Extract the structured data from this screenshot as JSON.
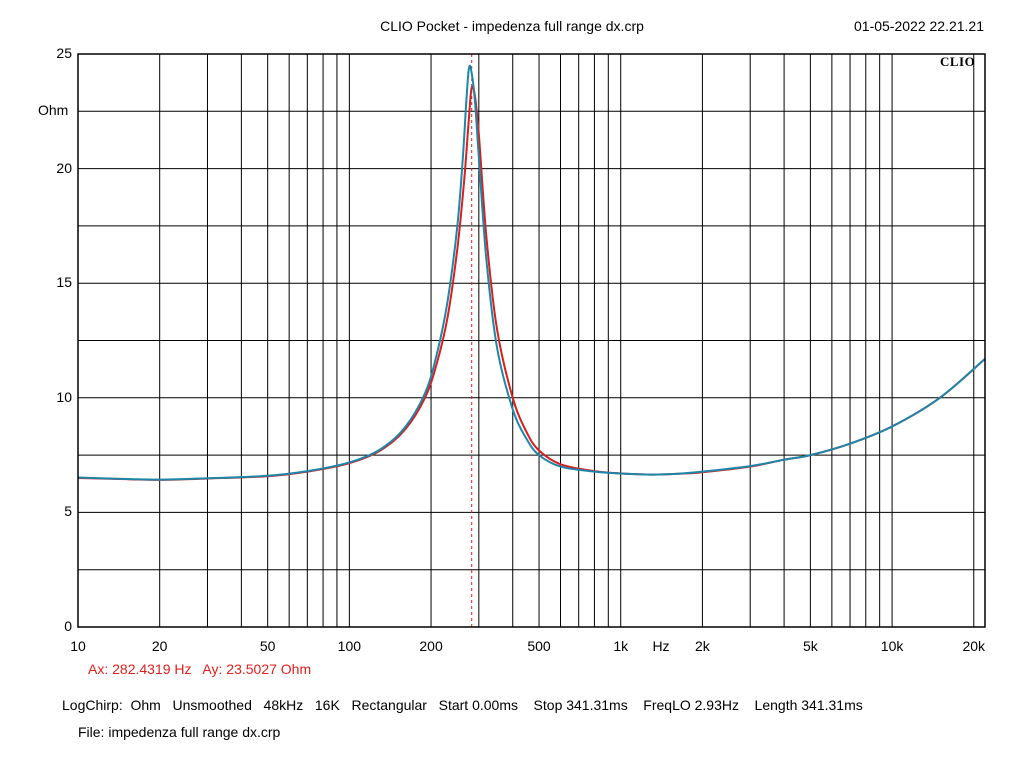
{
  "header": {
    "title": "CLIO Pocket - impedenza full range dx.crp",
    "datetime": "01-05-2022 22.21.21",
    "brand": "CLIO"
  },
  "cursor_readout": {
    "ax": "Ax: 282.4319 Hz",
    "ay": "Ay: 23.5027 Ohm"
  },
  "settings_line": "LogChirp:  Ohm   Unsmoothed   48kHz   16K   Rectangular   Start 0.00ms    Stop 341.31ms    FreqLO 2.93Hz    Length 341.31ms",
  "file_line": "File: impedenza full range dx.crp",
  "colors": {
    "red_trace": "#d81e1e",
    "blue_trace": "#1e86a8",
    "grid": "#000000",
    "cursor": "#d81e1e"
  },
  "chart_data": {
    "type": "line",
    "title": "CLIO Pocket - impedenza full range dx.crp",
    "xlabel": "Hz",
    "ylabel": "Ohm",
    "x_scale": "log",
    "xlim": [
      10,
      22000
    ],
    "ylim": [
      0,
      25
    ],
    "grid": true,
    "x_tick_labels": [
      {
        "value": 10,
        "label": "10"
      },
      {
        "value": 20,
        "label": "20"
      },
      {
        "value": 50,
        "label": "50"
      },
      {
        "value": 100,
        "label": "100"
      },
      {
        "value": 200,
        "label": "200"
      },
      {
        "value": 500,
        "label": "500"
      },
      {
        "value": 1000,
        "label": "1k"
      },
      {
        "value": 2000,
        "label": "2k"
      },
      {
        "value": 5000,
        "label": "5k"
      },
      {
        "value": 10000,
        "label": "10k"
      },
      {
        "value": 20000,
        "label": "20k"
      }
    ],
    "y_tick_labels": [
      {
        "value": 0,
        "label": "0"
      },
      {
        "value": 5,
        "label": "5"
      },
      {
        "value": 10,
        "label": "10"
      },
      {
        "value": 15,
        "label": "15"
      },
      {
        "value": 20,
        "label": "20"
      },
      {
        "value": 25,
        "label": "25"
      }
    ],
    "y_minor_grid": [
      2.5,
      7.5,
      12.5,
      17.5,
      22.5
    ],
    "cursor_x": 282.4319,
    "series": [
      {
        "color": "#d81e1e",
        "points": [
          [
            10,
            6.5
          ],
          [
            15,
            6.45
          ],
          [
            20,
            6.42
          ],
          [
            30,
            6.48
          ],
          [
            50,
            6.58
          ],
          [
            70,
            6.78
          ],
          [
            100,
            7.15
          ],
          [
            130,
            7.7
          ],
          [
            160,
            8.6
          ],
          [
            190,
            10.0
          ],
          [
            210,
            11.5
          ],
          [
            230,
            13.5
          ],
          [
            250,
            16.5
          ],
          [
            265,
            19.5
          ],
          [
            275,
            22.0
          ],
          [
            282,
            23.5
          ],
          [
            290,
            23.2
          ],
          [
            300,
            21.5
          ],
          [
            320,
            17.0
          ],
          [
            350,
            13.0
          ],
          [
            400,
            10.0
          ],
          [
            450,
            8.5
          ],
          [
            500,
            7.7
          ],
          [
            600,
            7.1
          ],
          [
            800,
            6.8
          ],
          [
            1000,
            6.7
          ],
          [
            1300,
            6.65
          ],
          [
            1600,
            6.68
          ],
          [
            2000,
            6.75
          ],
          [
            3000,
            7.0
          ],
          [
            4000,
            7.3
          ],
          [
            5000,
            7.5
          ],
          [
            7000,
            8.0
          ],
          [
            10000,
            8.75
          ],
          [
            15000,
            10.0
          ],
          [
            22000,
            11.7
          ]
        ]
      },
      {
        "color": "#1e86a8",
        "points": [
          [
            10,
            6.52
          ],
          [
            15,
            6.46
          ],
          [
            20,
            6.43
          ],
          [
            30,
            6.49
          ],
          [
            50,
            6.6
          ],
          [
            70,
            6.8
          ],
          [
            100,
            7.18
          ],
          [
            130,
            7.75
          ],
          [
            160,
            8.7
          ],
          [
            190,
            10.2
          ],
          [
            210,
            11.9
          ],
          [
            230,
            14.2
          ],
          [
            250,
            17.5
          ],
          [
            262,
            20.5
          ],
          [
            270,
            23.0
          ],
          [
            276,
            24.4
          ],
          [
            282,
            24.2
          ],
          [
            290,
            23.0
          ],
          [
            300,
            20.5
          ],
          [
            320,
            16.0
          ],
          [
            350,
            12.2
          ],
          [
            400,
            9.5
          ],
          [
            450,
            8.2
          ],
          [
            500,
            7.5
          ],
          [
            600,
            7.0
          ],
          [
            800,
            6.78
          ],
          [
            1000,
            6.7
          ],
          [
            1300,
            6.65
          ],
          [
            1600,
            6.68
          ],
          [
            2000,
            6.78
          ],
          [
            3000,
            7.02
          ],
          [
            4000,
            7.3
          ],
          [
            5000,
            7.5
          ],
          [
            7000,
            8.0
          ],
          [
            10000,
            8.75
          ],
          [
            15000,
            10.0
          ],
          [
            22000,
            11.7
          ]
        ]
      }
    ]
  }
}
